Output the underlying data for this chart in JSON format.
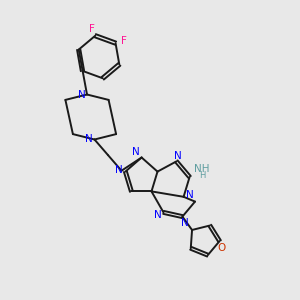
{
  "background_color": "#e8e8e8",
  "bond_color": "#1a1a1a",
  "N_color": "#0000ff",
  "O_color": "#cc3300",
  "F_color": "#ff1493",
  "NH2_color": "#5f9ea0",
  "lw": 1.4,
  "dlw": 1.3,
  "fs": 7.5,
  "xlim": [
    0,
    10
  ],
  "ylim": [
    0,
    10
  ]
}
